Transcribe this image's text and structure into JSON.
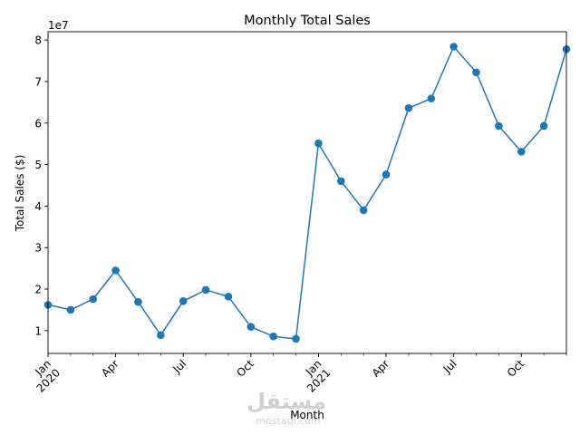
{
  "chart_data": {
    "type": "line",
    "title": "Monthly Total Sales",
    "xlabel": "Month",
    "ylabel": "Total Sales ($)",
    "y_multiplier_label": "1e7",
    "ylim": [
      4500000,
      82000000
    ],
    "xlim": [
      "2020-01",
      "2021-12"
    ],
    "grid": false,
    "legend": "none",
    "color": "#1f77b4",
    "x": [
      "2020-01",
      "2020-02",
      "2020-03",
      "2020-04",
      "2020-05",
      "2020-06",
      "2020-07",
      "2020-08",
      "2020-09",
      "2020-10",
      "2020-11",
      "2020-12",
      "2021-01",
      "2021-02",
      "2021-03",
      "2021-04",
      "2021-05",
      "2021-06",
      "2021-07",
      "2021-08",
      "2021-09",
      "2021-10",
      "2021-11",
      "2021-12"
    ],
    "values": [
      16200000,
      15000000,
      17600000,
      24500000,
      16900000,
      8900000,
      17100000,
      19800000,
      18200000,
      10900000,
      8600000,
      8000000,
      55100000,
      46000000,
      39000000,
      47600000,
      63600000,
      65900000,
      78400000,
      72200000,
      59300000,
      53100000,
      59300000,
      77800000
    ],
    "y_ticks": [
      {
        "value": 10000000,
        "label": "1"
      },
      {
        "value": 20000000,
        "label": "2"
      },
      {
        "value": 30000000,
        "label": "3"
      },
      {
        "value": 40000000,
        "label": "4"
      },
      {
        "value": 50000000,
        "label": "5"
      },
      {
        "value": 60000000,
        "label": "6"
      },
      {
        "value": 70000000,
        "label": "7"
      },
      {
        "value": 80000000,
        "label": "8"
      }
    ],
    "x_major_ticks": [
      {
        "index": 0,
        "label": "Jan",
        "sublabel": "2020"
      },
      {
        "index": 3,
        "label": "Apr",
        "sublabel": ""
      },
      {
        "index": 6,
        "label": "Jul",
        "sublabel": ""
      },
      {
        "index": 9,
        "label": "Oct",
        "sublabel": ""
      },
      {
        "index": 12,
        "label": "Jan",
        "sublabel": "2021"
      },
      {
        "index": 15,
        "label": "Apr",
        "sublabel": ""
      },
      {
        "index": 18,
        "label": "Jul",
        "sublabel": ""
      },
      {
        "index": 21,
        "label": "Oct",
        "sublabel": ""
      }
    ]
  },
  "watermark": {
    "logo_text": "مستقل",
    "site_text": "mostaql.com"
  }
}
